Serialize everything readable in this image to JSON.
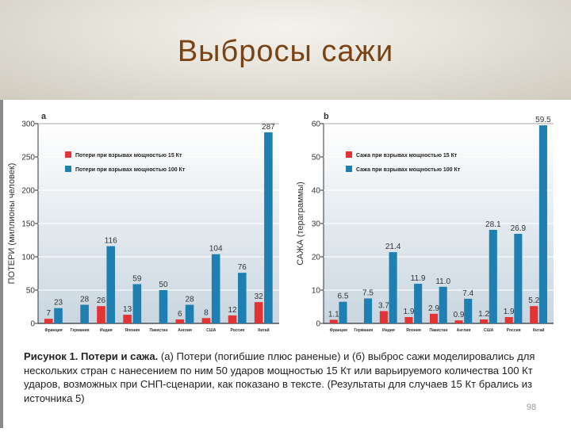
{
  "slide": {
    "title": "Выбросы сажи",
    "page_number": "98",
    "caption_bold": "Рисунок 1. Потери и сажа.",
    "caption_text": " (а) Потери (погибшие плюс раненые) и (б) выброс сажи моделировались для нескольких стран с нанесением по ним 50 ударов мощностью 15 Кт или варьируемого количества 100 Кт ударов, возможных при СНП-сценарии, как показано в тексте. (Результаты для случаев 15 Кт брались из источника 5)"
  },
  "colors": {
    "red": "#e23434",
    "blue": "#1f7fb0",
    "plot_bg_top": "#ffffff",
    "plot_bg_bottom": "#c9d6e0"
  },
  "chart_data": [
    {
      "type": "bar",
      "panel_label": "а",
      "ylabel": "ПОТЕРИ (миллионы человек)",
      "ylim": [
        0,
        300
      ],
      "yticks": [
        "0",
        "50",
        "100",
        "150",
        "200",
        "250",
        "300"
      ],
      "categories": [
        "Франция",
        "Германия",
        "Индия",
        "Япония",
        "Пакистан",
        "Англия",
        "США",
        "Россия",
        "Китай"
      ],
      "legend_position": "top-left",
      "series": [
        {
          "name": "Потери при взрывах мощностью 15 Кт",
          "values": [
            7,
            null,
            26,
            13,
            null,
            6,
            8,
            12,
            32
          ],
          "labels": [
            "7",
            "",
            "26",
            "13",
            "",
            "6",
            "8",
            "12",
            "32"
          ]
        },
        {
          "name": "Потери при взрывах мощностью 100 Кт",
          "values": [
            23,
            28,
            116,
            59,
            50,
            28,
            104,
            76,
            287
          ],
          "labels": [
            "23",
            "28",
            "116",
            "59",
            "50",
            "28",
            "104",
            "76",
            "287"
          ]
        }
      ]
    },
    {
      "type": "bar",
      "panel_label": "b",
      "ylabel": "САЖА (тераграммы)",
      "ylim": [
        0,
        60
      ],
      "yticks": [
        "0",
        "10",
        "20",
        "30",
        "40",
        "50",
        "60"
      ],
      "categories": [
        "Франция",
        "Германия",
        "Индия",
        "Япония",
        "Пакистан",
        "Англия",
        "США",
        "Россия",
        "Китай"
      ],
      "legend_position": "top-left",
      "series": [
        {
          "name": "Сажа при взрывах мощностью 15 Кт",
          "values": [
            1.1,
            null,
            3.7,
            1.9,
            2.9,
            0.9,
            1.2,
            1.9,
            5.2
          ],
          "labels": [
            "1.1",
            "",
            "3.7",
            "1.9",
            "2.9",
            "0.9",
            "1.2",
            "1.9",
            "5.2"
          ]
        },
        {
          "name": "Сажа при взрывах мощностью 100 Кт",
          "values": [
            6.5,
            7.5,
            21.4,
            11.9,
            11.0,
            7.4,
            28.1,
            26.9,
            59.5
          ],
          "labels": [
            "6.5",
            "7.5",
            "21.4",
            "11.9",
            "11.0",
            "7.4",
            "28.1",
            "26.9",
            "59.5"
          ]
        }
      ]
    }
  ]
}
